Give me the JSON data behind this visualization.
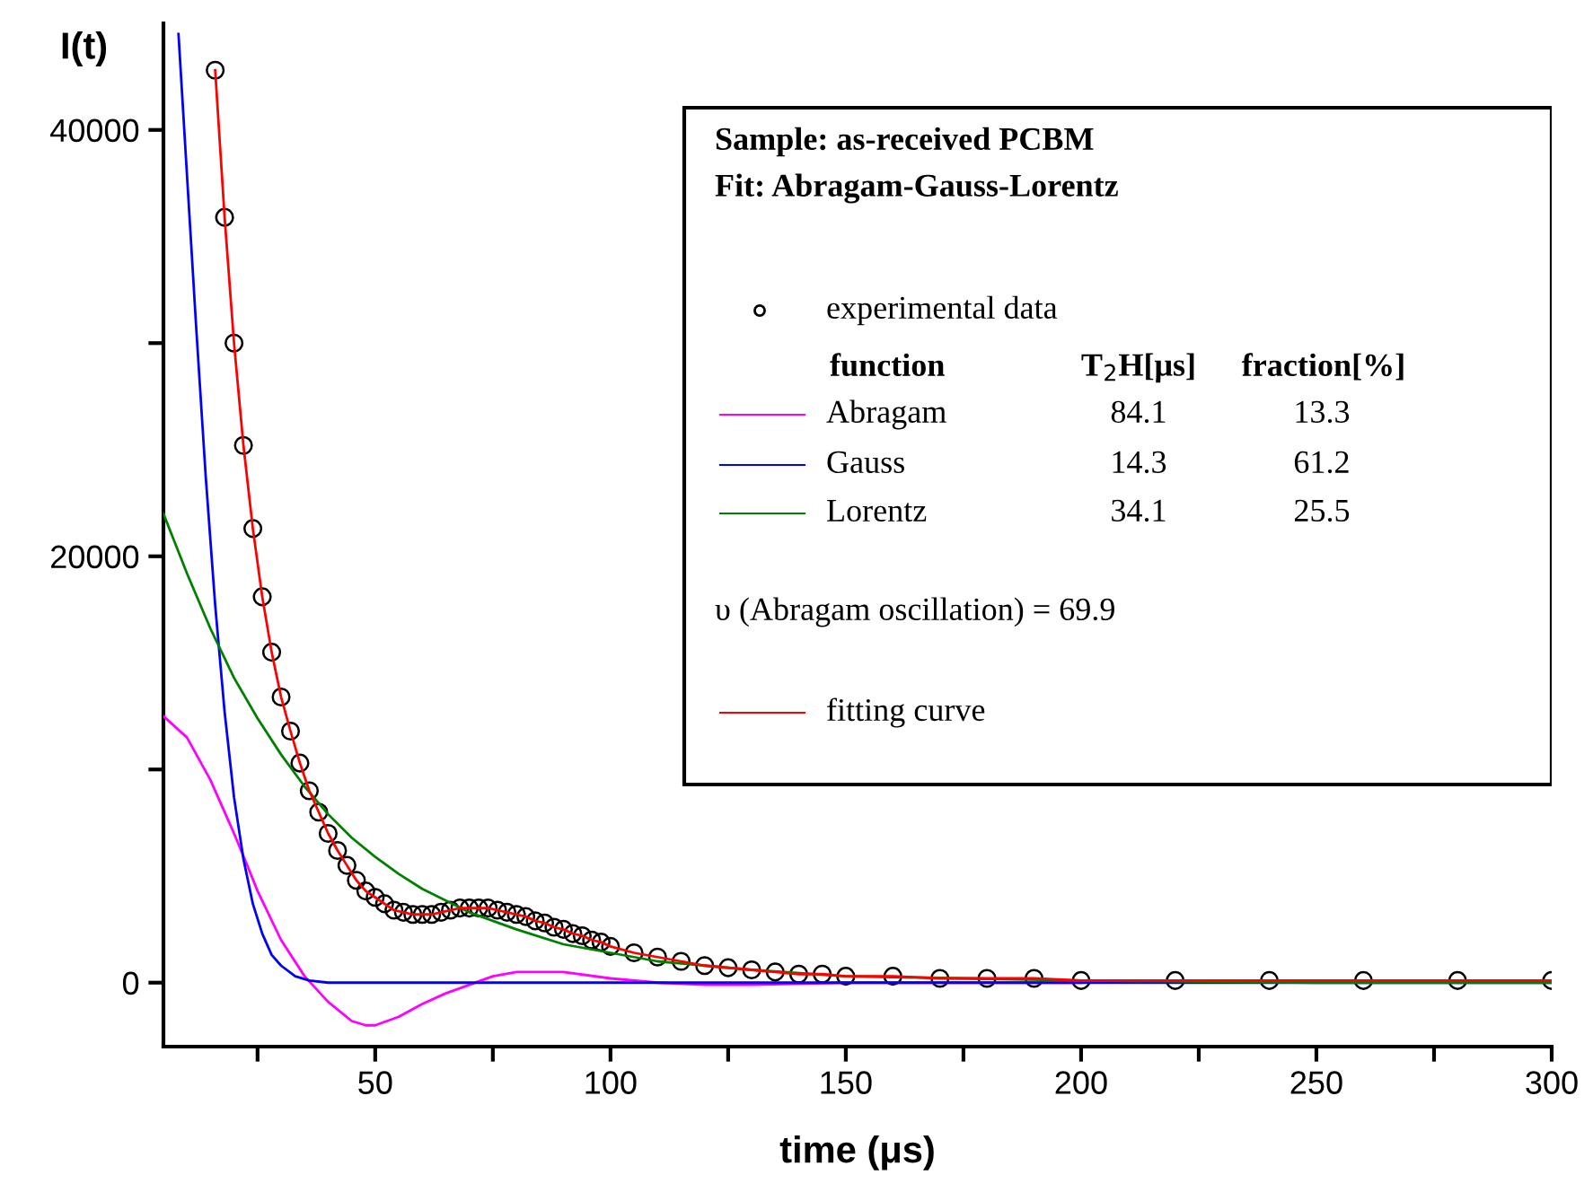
{
  "chart_data": {
    "type": "line",
    "xlabel": "time (μs)",
    "ylabel": "I(t)",
    "xlim": [
      5,
      300
    ],
    "ylim": [
      -3000,
      45000
    ],
    "xticks": [
      {
        "value": 25,
        "label": null
      },
      50,
      {
        "value": 75,
        "label": null
      },
      100,
      {
        "value": 125,
        "label": null
      },
      150,
      {
        "value": 175,
        "label": null
      },
      200,
      {
        "value": 225,
        "label": null
      },
      250,
      {
        "value": 275,
        "label": null
      },
      300
    ],
    "yticks": [
      0,
      {
        "value": 10000,
        "label": null
      },
      20000,
      {
        "value": 30000,
        "label": null
      },
      40000
    ],
    "grid": false,
    "legend": "top right",
    "annotations": [
      "Sample: as-received PCBM",
      "Fit: Abragam-Gauss-Lorentz",
      "function",
      "T$_{2}$H[μs]",
      "fraction[%]",
      "84.1",
      "13.3",
      "14.3",
      "61.2",
      "34.1",
      "25.5",
      "υ (Abragam oscillation) = 69.9"
    ],
    "series": [
      {
        "name": "experimental data",
        "type": "scatter",
        "marker": "circle",
        "color": "#000000",
        "x": [
          16,
          18,
          20,
          22,
          24,
          26,
          28,
          30,
          32,
          34,
          36,
          38,
          40,
          42,
          44,
          46,
          48,
          50,
          52,
          54,
          56,
          58,
          60,
          62,
          64,
          66,
          68,
          70,
          72,
          74,
          76,
          78,
          80,
          82,
          84,
          86,
          88,
          90,
          92,
          94,
          96,
          98,
          100,
          105,
          110,
          115,
          120,
          125,
          130,
          135,
          140,
          145,
          150,
          160,
          170,
          180,
          190,
          200,
          220,
          240,
          260,
          280,
          300
        ],
        "values": [
          42800,
          35900,
          30000,
          25200,
          21300,
          18100,
          15500,
          13400,
          11800,
          10300,
          9000,
          8000,
          7000,
          6200,
          5500,
          4800,
          4300,
          4000,
          3700,
          3400,
          3300,
          3200,
          3200,
          3200,
          3300,
          3400,
          3500,
          3500,
          3500,
          3500,
          3400,
          3300,
          3200,
          3100,
          2900,
          2800,
          2600,
          2500,
          2300,
          2200,
          2000,
          1900,
          1700,
          1400,
          1200,
          1000,
          800,
          700,
          600,
          500,
          400,
          400,
          300,
          300,
          200,
          200,
          200,
          100,
          100,
          100,
          100,
          100,
          100
        ]
      },
      {
        "name": "Abragam",
        "color": "#ff00ff",
        "x": [
          5,
          10,
          15,
          20,
          23,
          25,
          30,
          35,
          40,
          45,
          48,
          50,
          55,
          60,
          65,
          70,
          75,
          80,
          83,
          90,
          100,
          110,
          120,
          130,
          150,
          200
        ],
        "values": [
          12500,
          11500,
          9500,
          7000,
          5400,
          4300,
          2000,
          300,
          -900,
          -1800,
          -2000,
          -2000,
          -1600,
          -1000,
          -500,
          -100,
          300,
          500,
          500,
          500,
          200,
          0,
          -100,
          -100,
          0,
          0
        ]
      },
      {
        "name": "Gauss",
        "color": "#0000ff",
        "x": [
          8.2,
          10,
          12,
          14,
          16,
          18,
          20,
          22,
          24,
          26,
          28,
          30,
          33,
          36,
          40,
          50,
          100,
          200,
          300
        ],
        "values": [
          44500,
          37900,
          30600,
          23700,
          17700,
          12700,
          8700,
          5800,
          3700,
          2300,
          1300,
          800,
          300,
          100,
          0,
          0,
          0,
          0,
          0
        ]
      },
      {
        "name": "Lorentz",
        "color": "#008000",
        "x": [
          5,
          10,
          15,
          20,
          25,
          30,
          35,
          40,
          45,
          50,
          55,
          60,
          70,
          80,
          90,
          100,
          110,
          120,
          130,
          150,
          175,
          200,
          250,
          300
        ],
        "values": [
          22000,
          19200,
          16600,
          14300,
          12400,
          10700,
          9200,
          7900,
          6800,
          5900,
          5100,
          4400,
          3300,
          2500,
          1800,
          1400,
          1000,
          800,
          600,
          300,
          200,
          100,
          0,
          0
        ]
      },
      {
        "name": "fitting curve",
        "color": "#ff0000",
        "x": [
          16,
          18,
          20,
          22,
          24,
          26,
          28,
          30,
          32,
          34,
          36,
          38,
          40,
          42,
          44,
          46,
          48,
          50,
          52,
          54,
          56,
          58,
          60,
          62,
          64,
          66,
          68,
          70,
          72,
          74,
          76,
          78,
          80,
          82,
          84,
          86,
          88,
          90,
          92,
          94,
          96,
          98,
          100,
          105,
          110,
          115,
          120,
          125,
          130,
          135,
          140,
          145,
          150,
          160,
          170,
          180,
          190,
          200,
          220,
          240,
          260,
          280,
          300
        ],
        "values": [
          42800,
          35900,
          30000,
          25200,
          21300,
          18100,
          15500,
          13400,
          11800,
          10300,
          9000,
          8000,
          7000,
          6200,
          5500,
          4800,
          4300,
          4000,
          3700,
          3400,
          3300,
          3200,
          3200,
          3200,
          3300,
          3400,
          3500,
          3500,
          3500,
          3500,
          3400,
          3300,
          3200,
          3100,
          2900,
          2800,
          2600,
          2500,
          2300,
          2200,
          2000,
          1900,
          1700,
          1400,
          1200,
          1000,
          800,
          700,
          600,
          500,
          400,
          400,
          300,
          300,
          200,
          200,
          200,
          100,
          100,
          100,
          100,
          100,
          100
        ]
      }
    ]
  }
}
